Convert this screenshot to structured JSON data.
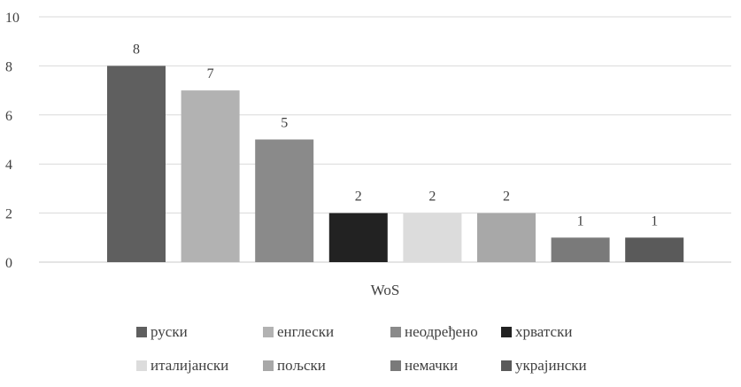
{
  "chart_data": {
    "type": "bar",
    "categories": [
      "WoS"
    ],
    "series": [
      {
        "name": "руски",
        "values": [
          8
        ],
        "color": "#5f5f5f"
      },
      {
        "name": "енглески",
        "values": [
          7
        ],
        "color": "#b2b2b2"
      },
      {
        "name": "неодређено",
        "values": [
          5
        ],
        "color": "#8a8a8a"
      },
      {
        "name": "хрватски",
        "values": [
          2
        ],
        "color": "#222222"
      },
      {
        "name": "италијански",
        "values": [
          2
        ],
        "color": "#dcdcdc"
      },
      {
        "name": "пољски",
        "values": [
          2
        ],
        "color": "#a8a8a8"
      },
      {
        "name": "немачки",
        "values": [
          1
        ],
        "color": "#7a7a7a"
      },
      {
        "name": "украјински",
        "values": [
          1
        ],
        "color": "#5a5a5a"
      }
    ],
    "ylim": [
      0,
      10
    ],
    "yticks": [
      "0",
      "2",
      "4",
      "6",
      "8",
      "10"
    ],
    "grid": true,
    "legend_position": "bottom",
    "data_labels": true
  }
}
